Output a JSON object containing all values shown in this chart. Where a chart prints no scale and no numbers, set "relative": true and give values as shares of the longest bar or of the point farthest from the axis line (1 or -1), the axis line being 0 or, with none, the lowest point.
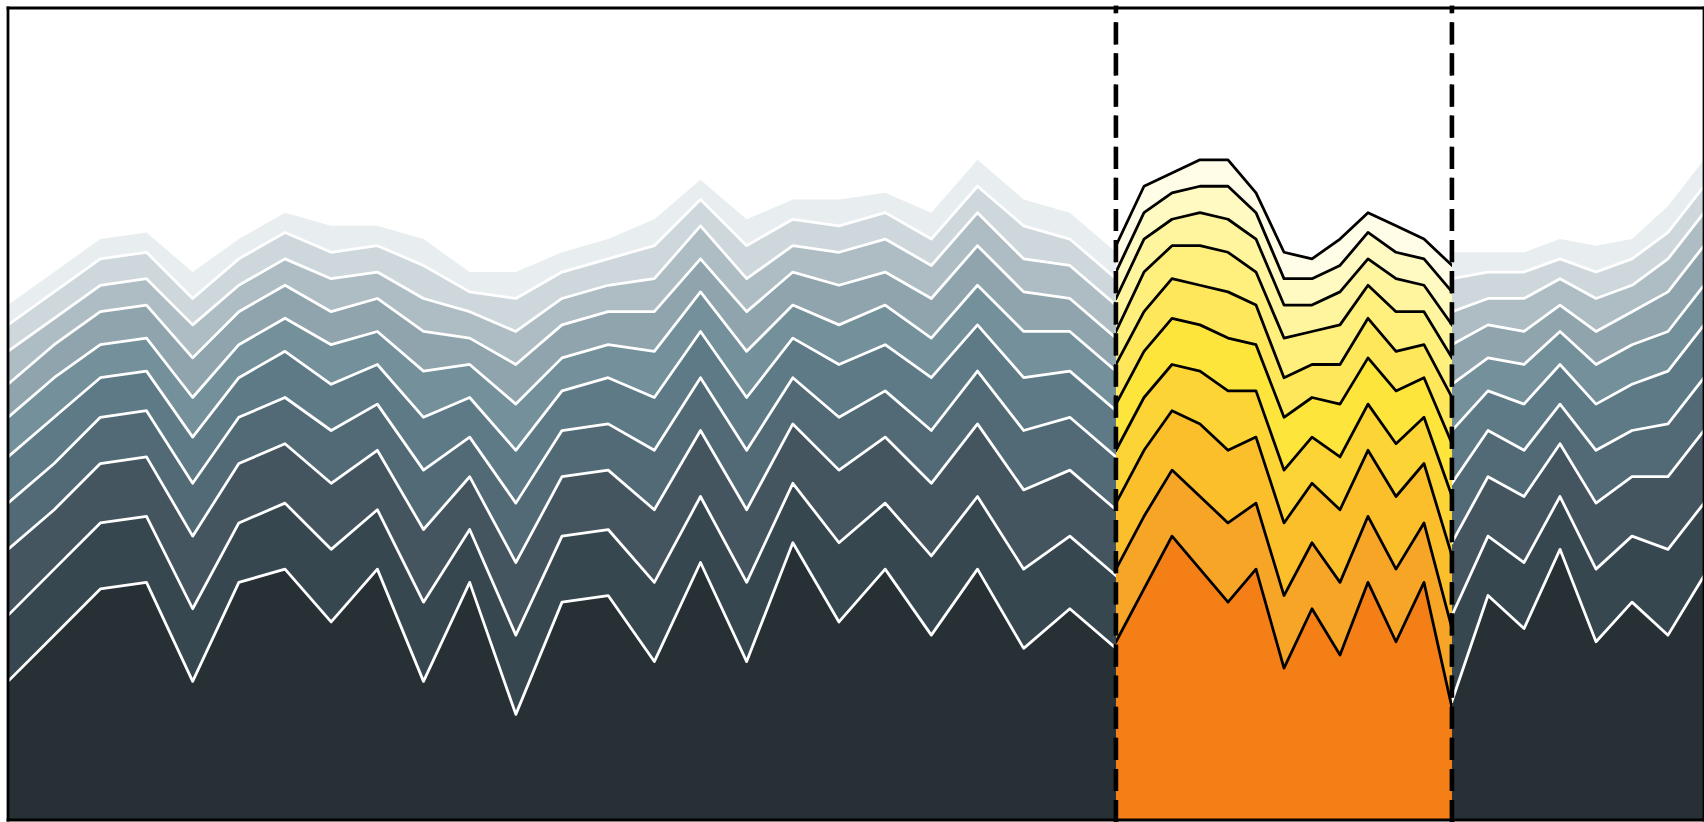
{
  "chart_data": [
    {
      "type": "area",
      "stacked": true,
      "relative": true,
      "tick_labels": false,
      "categories": [
        null,
        null,
        null,
        null,
        null,
        null,
        null,
        null,
        null,
        null,
        null,
        null,
        null,
        null,
        null,
        null,
        null,
        null,
        null,
        null,
        null,
        null,
        null,
        null,
        null
      ],
      "series": [
        {
          "color": "#263035",
          "values": [
            0.21,
            0.28,
            0.35,
            0.36,
            0.21,
            0.36,
            0.38,
            0.3,
            0.38,
            0.21,
            0.36,
            0.16,
            0.33,
            0.34,
            0.24,
            0.39,
            0.24,
            0.42,
            0.3,
            0.38,
            0.28,
            0.38,
            0.26,
            0.32,
            0.26
          ]
        },
        {
          "color": "#37474f",
          "values": [
            0.1,
            0.1,
            0.1,
            0.1,
            0.11,
            0.09,
            0.1,
            0.11,
            0.09,
            0.12,
            0.08,
            0.12,
            0.1,
            0.1,
            0.12,
            0.1,
            0.12,
            0.09,
            0.12,
            0.1,
            0.12,
            0.11,
            0.12,
            0.11,
            0.11
          ]
        },
        {
          "color": "#45555f",
          "values": [
            0.1,
            0.09,
            0.09,
            0.09,
            0.11,
            0.09,
            0.09,
            0.1,
            0.09,
            0.11,
            0.08,
            0.11,
            0.09,
            0.09,
            0.11,
            0.1,
            0.11,
            0.09,
            0.11,
            0.1,
            0.11,
            0.11,
            0.12,
            0.1,
            0.1
          ]
        },
        {
          "color": "#526a75",
          "values": [
            0.07,
            0.07,
            0.07,
            0.07,
            0.08,
            0.07,
            0.07,
            0.08,
            0.07,
            0.09,
            0.06,
            0.09,
            0.07,
            0.07,
            0.09,
            0.08,
            0.09,
            0.07,
            0.08,
            0.07,
            0.08,
            0.08,
            0.09,
            0.08,
            0.08
          ]
        },
        {
          "color": "#5e7a87",
          "values": [
            0.07,
            0.07,
            0.06,
            0.06,
            0.07,
            0.06,
            0.07,
            0.07,
            0.06,
            0.08,
            0.06,
            0.08,
            0.06,
            0.07,
            0.08,
            0.07,
            0.08,
            0.06,
            0.08,
            0.07,
            0.08,
            0.07,
            0.08,
            0.07,
            0.07
          ]
        },
        {
          "color": "#73909b",
          "values": [
            0.06,
            0.06,
            0.05,
            0.05,
            0.06,
            0.05,
            0.05,
            0.06,
            0.05,
            0.07,
            0.05,
            0.07,
            0.05,
            0.05,
            0.07,
            0.06,
            0.07,
            0.05,
            0.06,
            0.06,
            0.06,
            0.06,
            0.07,
            0.06,
            0.06
          ]
        },
        {
          "color": "#8fa4ad",
          "values": [
            0.05,
            0.05,
            0.05,
            0.05,
            0.06,
            0.05,
            0.05,
            0.05,
            0.05,
            0.06,
            0.04,
            0.06,
            0.05,
            0.05,
            0.06,
            0.05,
            0.06,
            0.05,
            0.06,
            0.05,
            0.06,
            0.06,
            0.06,
            0.05,
            0.05
          ]
        },
        {
          "color": "#aebdc3",
          "values": [
            0.05,
            0.04,
            0.04,
            0.04,
            0.05,
            0.04,
            0.04,
            0.05,
            0.04,
            0.05,
            0.04,
            0.05,
            0.04,
            0.04,
            0.05,
            0.05,
            0.05,
            0.04,
            0.05,
            0.05,
            0.05,
            0.05,
            0.05,
            0.05,
            0.05
          ]
        },
        {
          "color": "#cdd7dc",
          "values": [
            0.04,
            0.04,
            0.04,
            0.04,
            0.04,
            0.04,
            0.04,
            0.04,
            0.04,
            0.05,
            0.03,
            0.05,
            0.04,
            0.04,
            0.05,
            0.04,
            0.05,
            0.04,
            0.04,
            0.04,
            0.04,
            0.04,
            0.05,
            0.04,
            0.04
          ]
        },
        {
          "color": "#e8eef0",
          "values": [
            0.03,
            0.03,
            0.03,
            0.03,
            0.04,
            0.03,
            0.03,
            0.04,
            0.03,
            0.04,
            0.03,
            0.04,
            0.03,
            0.03,
            0.04,
            0.03,
            0.04,
            0.03,
            0.04,
            0.03,
            0.04,
            0.04,
            0.04,
            0.04,
            0.04
          ]
        }
      ]
    },
    {
      "type": "area",
      "stacked": true,
      "relative": true,
      "tick_labels": false,
      "categories": [
        null,
        null,
        null,
        null,
        null,
        null,
        null,
        null,
        null,
        null,
        null,
        null,
        null
      ],
      "series": [
        {
          "color": "#f47f16",
          "values": [
            0.27,
            0.35,
            0.43,
            0.38,
            0.33,
            0.38,
            0.23,
            0.32,
            0.25,
            0.36,
            0.27,
            0.36,
            0.17
          ]
        },
        {
          "color": "#f6a527",
          "values": [
            0.11,
            0.11,
            0.1,
            0.11,
            0.12,
            0.1,
            0.11,
            0.1,
            0.11,
            0.1,
            0.11,
            0.09,
            0.12
          ]
        },
        {
          "color": "#fbbf2c",
          "values": [
            0.1,
            0.1,
            0.09,
            0.11,
            0.11,
            0.1,
            0.11,
            0.09,
            0.11,
            0.1,
            0.11,
            0.09,
            0.11
          ]
        },
        {
          "color": "#fdd436",
          "values": [
            0.08,
            0.08,
            0.07,
            0.08,
            0.09,
            0.07,
            0.08,
            0.07,
            0.08,
            0.07,
            0.08,
            0.07,
            0.09
          ]
        },
        {
          "color": "#fde53c",
          "values": [
            0.07,
            0.07,
            0.07,
            0.07,
            0.08,
            0.07,
            0.08,
            0.06,
            0.08,
            0.07,
            0.08,
            0.06,
            0.08
          ]
        },
        {
          "color": "#fee75a",
          "values": [
            0.06,
            0.06,
            0.06,
            0.06,
            0.07,
            0.06,
            0.06,
            0.05,
            0.06,
            0.06,
            0.06,
            0.05,
            0.07
          ]
        },
        {
          "color": "#fff07e",
          "values": [
            0.05,
            0.06,
            0.05,
            0.06,
            0.06,
            0.05,
            0.06,
            0.05,
            0.06,
            0.05,
            0.06,
            0.05,
            0.06
          ]
        },
        {
          "color": "#fff59f",
          "values": [
            0.05,
            0.05,
            0.04,
            0.05,
            0.05,
            0.05,
            0.05,
            0.04,
            0.05,
            0.04,
            0.05,
            0.04,
            0.05
          ]
        },
        {
          "color": "#fffac2",
          "values": [
            0.04,
            0.04,
            0.04,
            0.04,
            0.05,
            0.04,
            0.04,
            0.04,
            0.04,
            0.04,
            0.04,
            0.04,
            0.05
          ]
        },
        {
          "color": "#fffde8",
          "values": [
            0.04,
            0.04,
            0.03,
            0.04,
            0.04,
            0.03,
            0.04,
            0.03,
            0.04,
            0.03,
            0.04,
            0.03,
            0.04
          ]
        }
      ]
    },
    {
      "type": "area",
      "stacked": true,
      "relative": true,
      "tick_labels": false,
      "categories": [
        null,
        null,
        null,
        null,
        null,
        null,
        null,
        null
      ],
      "series": [
        {
          "color": "#263035",
          "values": [
            0.18,
            0.34,
            0.29,
            0.41,
            0.27,
            0.33,
            0.28,
            0.37
          ]
        },
        {
          "color": "#37474f",
          "values": [
            0.13,
            0.09,
            0.1,
            0.08,
            0.11,
            0.1,
            0.13,
            0.11
          ]
        },
        {
          "color": "#45555f",
          "values": [
            0.11,
            0.09,
            0.1,
            0.08,
            0.1,
            0.09,
            0.11,
            0.11
          ]
        },
        {
          "color": "#526a75",
          "values": [
            0.09,
            0.07,
            0.07,
            0.06,
            0.08,
            0.07,
            0.08,
            0.08
          ]
        },
        {
          "color": "#5e7a87",
          "values": [
            0.08,
            0.06,
            0.07,
            0.06,
            0.07,
            0.07,
            0.08,
            0.08
          ]
        },
        {
          "color": "#73909b",
          "values": [
            0.07,
            0.05,
            0.06,
            0.05,
            0.06,
            0.06,
            0.06,
            0.06
          ]
        },
        {
          "color": "#8fa4ad",
          "values": [
            0.06,
            0.05,
            0.05,
            0.04,
            0.05,
            0.05,
            0.06,
            0.06
          ]
        },
        {
          "color": "#aebdc3",
          "values": [
            0.05,
            0.04,
            0.05,
            0.04,
            0.05,
            0.04,
            0.05,
            0.05
          ]
        },
        {
          "color": "#cdd7dc",
          "values": [
            0.05,
            0.04,
            0.04,
            0.03,
            0.04,
            0.04,
            0.04,
            0.04
          ]
        },
        {
          "color": "#e8eef0",
          "values": [
            0.04,
            0.03,
            0.03,
            0.03,
            0.04,
            0.03,
            0.04,
            0.04
          ]
        }
      ]
    }
  ]
}
